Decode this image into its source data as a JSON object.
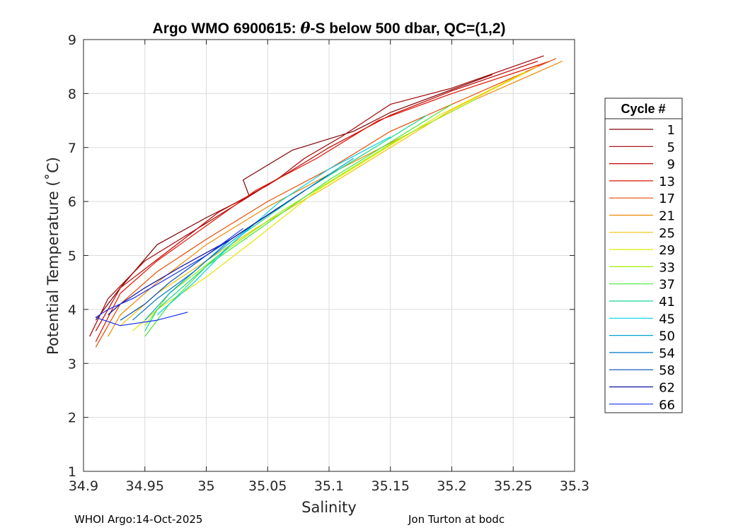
{
  "chart_data": {
    "type": "line",
    "title_prefix": "Argo WMO 6900615: ",
    "title_theta": "θ",
    "title_suffix": "-S below 500 dbar,  QC=(1,2)",
    "xlabel": "Salinity",
    "ylabel": "Potential Temperature (˚C)",
    "xlim": [
      34.9,
      35.3
    ],
    "ylim": [
      1,
      9
    ],
    "xticks": [
      34.9,
      34.95,
      35,
      35.05,
      35.1,
      35.15,
      35.2,
      35.25,
      35.3
    ],
    "xtick_labels": [
      "34.9",
      "34.95",
      "35",
      "35.05",
      "35.1",
      "35.15",
      "35.2",
      "35.25",
      "35.3"
    ],
    "yticks": [
      1,
      2,
      3,
      4,
      5,
      6,
      7,
      8,
      9
    ],
    "ytick_labels": [
      "1",
      "2",
      "3",
      "4",
      "5",
      "6",
      "7",
      "8",
      "9"
    ],
    "grid": true,
    "legend_title": "Cycle #",
    "legend_position": "right",
    "series": [
      {
        "name": "1",
        "color": "#800000",
        "points": [
          [
            35.233,
            8.35
          ],
          [
            35.15,
            7.65
          ],
          [
            35.12,
            7.3
          ],
          [
            35.07,
            6.95
          ],
          [
            35.03,
            6.4
          ],
          [
            35.035,
            6.1
          ],
          [
            35.0,
            5.7
          ],
          [
            34.96,
            5.2
          ],
          [
            34.93,
            4.4
          ],
          [
            34.91,
            3.8
          ]
        ]
      },
      {
        "name": "5",
        "color": "#a00000",
        "points": [
          [
            35.275,
            8.7
          ],
          [
            35.2,
            8.1
          ],
          [
            35.15,
            7.8
          ],
          [
            35.11,
            7.2
          ],
          [
            35.08,
            6.8
          ],
          [
            35.06,
            6.45
          ],
          [
            35.0,
            5.6
          ],
          [
            34.95,
            4.9
          ],
          [
            34.92,
            4.2
          ],
          [
            34.905,
            3.5
          ]
        ]
      },
      {
        "name": "9",
        "color": "#c00000",
        "points": [
          [
            35.27,
            8.6
          ],
          [
            35.2,
            8.05
          ],
          [
            35.15,
            7.6
          ],
          [
            35.1,
            7.0
          ],
          [
            35.05,
            6.3
          ],
          [
            35.01,
            5.8
          ],
          [
            34.97,
            5.1
          ],
          [
            34.93,
            4.4
          ],
          [
            34.91,
            3.6
          ]
        ]
      },
      {
        "name": "13",
        "color": "#e01500",
        "points": [
          [
            35.28,
            8.6
          ],
          [
            35.2,
            8.0
          ],
          [
            35.14,
            7.5
          ],
          [
            35.09,
            6.8
          ],
          [
            35.04,
            6.2
          ],
          [
            35.0,
            5.55
          ],
          [
            34.96,
            4.9
          ],
          [
            34.93,
            4.3
          ],
          [
            34.91,
            3.4
          ]
        ]
      },
      {
        "name": "17",
        "color": "#e84a00",
        "points": [
          [
            35.285,
            8.65
          ],
          [
            35.21,
            7.9
          ],
          [
            35.15,
            7.3
          ],
          [
            35.1,
            6.6
          ],
          [
            35.05,
            6.0
          ],
          [
            35.0,
            5.3
          ],
          [
            34.96,
            4.7
          ],
          [
            34.93,
            4.1
          ],
          [
            34.91,
            3.3
          ]
        ]
      },
      {
        "name": "21",
        "color": "#ee8800",
        "points": [
          [
            35.29,
            8.6
          ],
          [
            35.22,
            7.9
          ],
          [
            35.16,
            7.2
          ],
          [
            35.1,
            6.5
          ],
          [
            35.05,
            5.9
          ],
          [
            35.0,
            5.2
          ],
          [
            34.96,
            4.5
          ],
          [
            34.93,
            3.9
          ],
          [
            34.92,
            3.5
          ]
        ]
      },
      {
        "name": "25",
        "color": "#f2c200",
        "points": [
          [
            35.27,
            8.5
          ],
          [
            35.2,
            7.7
          ],
          [
            35.15,
            7.0
          ],
          [
            35.1,
            6.3
          ],
          [
            35.04,
            5.5
          ],
          [
            35.0,
            4.9
          ],
          [
            34.96,
            4.3
          ],
          [
            34.93,
            3.7
          ]
        ]
      },
      {
        "name": "29",
        "color": "#e2e800",
        "points": [
          [
            35.26,
            8.4
          ],
          [
            35.19,
            7.6
          ],
          [
            35.14,
            6.9
          ],
          [
            35.09,
            6.2
          ],
          [
            35.04,
            5.3
          ],
          [
            35.0,
            4.6
          ],
          [
            34.96,
            4.0
          ],
          [
            34.94,
            3.6
          ]
        ]
      },
      {
        "name": "33",
        "color": "#99f000",
        "points": [
          [
            35.22,
            7.9
          ],
          [
            35.16,
            7.2
          ],
          [
            35.11,
            6.5
          ],
          [
            35.06,
            5.8
          ],
          [
            35.01,
            5.0
          ],
          [
            34.97,
            4.3
          ],
          [
            34.95,
            3.7
          ]
        ]
      },
      {
        "name": "37",
        "color": "#44e834",
        "points": [
          [
            35.2,
            7.8
          ],
          [
            35.15,
            7.1
          ],
          [
            35.1,
            6.4
          ],
          [
            35.05,
            5.6
          ],
          [
            35.0,
            4.8
          ],
          [
            34.97,
            4.1
          ],
          [
            34.95,
            3.5
          ]
        ]
      },
      {
        "name": "41",
        "color": "#10d890",
        "points": [
          [
            35.18,
            7.6
          ],
          [
            35.13,
            6.9
          ],
          [
            35.08,
            6.2
          ],
          [
            35.03,
            5.4
          ],
          [
            34.99,
            4.6
          ],
          [
            34.96,
            4.0
          ],
          [
            34.95,
            3.6
          ]
        ]
      },
      {
        "name": "45",
        "color": "#00d2e6",
        "points": [
          [
            35.15,
            7.2
          ],
          [
            35.1,
            6.6
          ],
          [
            35.06,
            6.0
          ],
          [
            35.02,
            5.2
          ],
          [
            34.99,
            4.5
          ],
          [
            34.96,
            3.9
          ]
        ]
      },
      {
        "name": "50",
        "color": "#00a4d2",
        "points": [
          [
            35.12,
            6.8
          ],
          [
            35.08,
            6.2
          ],
          [
            35.04,
            5.6
          ],
          [
            35.0,
            4.9
          ],
          [
            34.97,
            4.3
          ],
          [
            34.95,
            3.8
          ]
        ]
      },
      {
        "name": "54",
        "color": "#0074c8",
        "points": [
          [
            35.1,
            6.5
          ],
          [
            35.06,
            5.9
          ],
          [
            35.02,
            5.3
          ],
          [
            34.99,
            4.7
          ],
          [
            34.96,
            4.2
          ],
          [
            34.94,
            3.8
          ]
        ]
      },
      {
        "name": "58",
        "color": "#0048b4",
        "points": [
          [
            35.08,
            6.2
          ],
          [
            35.04,
            5.6
          ],
          [
            35.0,
            5.0
          ],
          [
            34.97,
            4.5
          ],
          [
            34.95,
            4.1
          ],
          [
            34.93,
            3.8
          ]
        ]
      },
      {
        "name": "62",
        "color": "#1010a0",
        "points": [
          [
            35.06,
            5.9
          ],
          [
            35.02,
            5.3
          ],
          [
            34.98,
            4.8
          ],
          [
            34.95,
            4.4
          ],
          [
            34.93,
            4.1
          ],
          [
            34.92,
            3.9
          ]
        ]
      },
      {
        "name": "66",
        "color": "#1530ee",
        "points": [
          [
            35.03,
            5.5
          ],
          [
            35.0,
            5.0
          ],
          [
            34.97,
            4.6
          ],
          [
            34.94,
            4.2
          ],
          [
            34.92,
            4.0
          ],
          [
            34.91,
            3.85
          ],
          [
            34.93,
            3.7
          ],
          [
            34.96,
            3.8
          ],
          [
            34.985,
            3.95
          ]
        ]
      }
    ]
  },
  "footer": {
    "left": "WHOI Argo:14-Oct-2025",
    "right": "Jon Turton at bodc"
  }
}
